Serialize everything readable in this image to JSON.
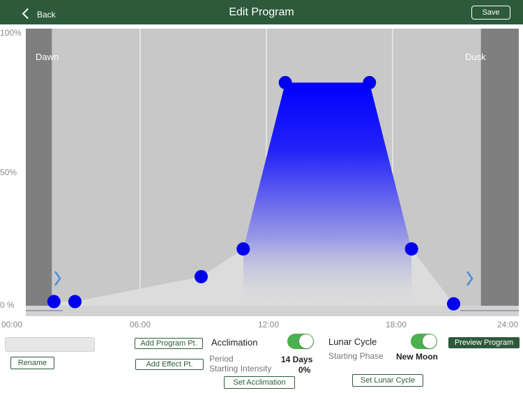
{
  "header": {
    "back_label": "Back",
    "title": "Edit Program",
    "save_label": "Save"
  },
  "chart_data": {
    "type": "area",
    "title": "",
    "xlabel": "",
    "ylabel": "",
    "xlim": [
      0,
      24
    ],
    "ylim": [
      0,
      100
    ],
    "x_ticks": [
      "00:00",
      "06:00",
      "12:00",
      "18:00",
      "24:00"
    ],
    "y_ticks": [
      "100%",
      "50%",
      "0 %"
    ],
    "dawn_label": "Dawn",
    "dusk_label": "Dusk",
    "dawn_end_hour": 1.8,
    "dusk_start_hour": 22.2,
    "points": [
      {
        "x": 1.9,
        "y": 1.5
      },
      {
        "x": 2.9,
        "y": 1.5
      },
      {
        "x": 8.9,
        "y": 10.5
      },
      {
        "x": 10.9,
        "y": 20.5
      },
      {
        "x": 12.9,
        "y": 80.5
      },
      {
        "x": 16.9,
        "y": 80.5
      },
      {
        "x": 18.9,
        "y": 20.5
      },
      {
        "x": 20.9,
        "y": 0.7
      }
    ],
    "colors": {
      "point": "#0000ee",
      "fill_top": "#0000ff",
      "dawn_dusk": "#7f7f7f",
      "plot_bg": "#c8c8c8"
    }
  },
  "controls": {
    "name_value": "",
    "rename_label": "Rename",
    "add_program_label": "Add Program Pt.",
    "add_effect_label": "Add Effect Pt.",
    "acclimation_label": "Acclimation",
    "period_label": "Period",
    "period_value": "14 Days",
    "starting_intensity_label": "Starting Intensity",
    "starting_intensity_value": "0%",
    "set_acclimation_label": "Set Acclimation",
    "lunar_cycle_label": "Lunar Cycle",
    "starting_phase_label": "Starting Phase",
    "starting_phase_value": "New Moon",
    "set_lunar_label": "Set Lunar Cycle",
    "preview_label": "Preview Program"
  }
}
